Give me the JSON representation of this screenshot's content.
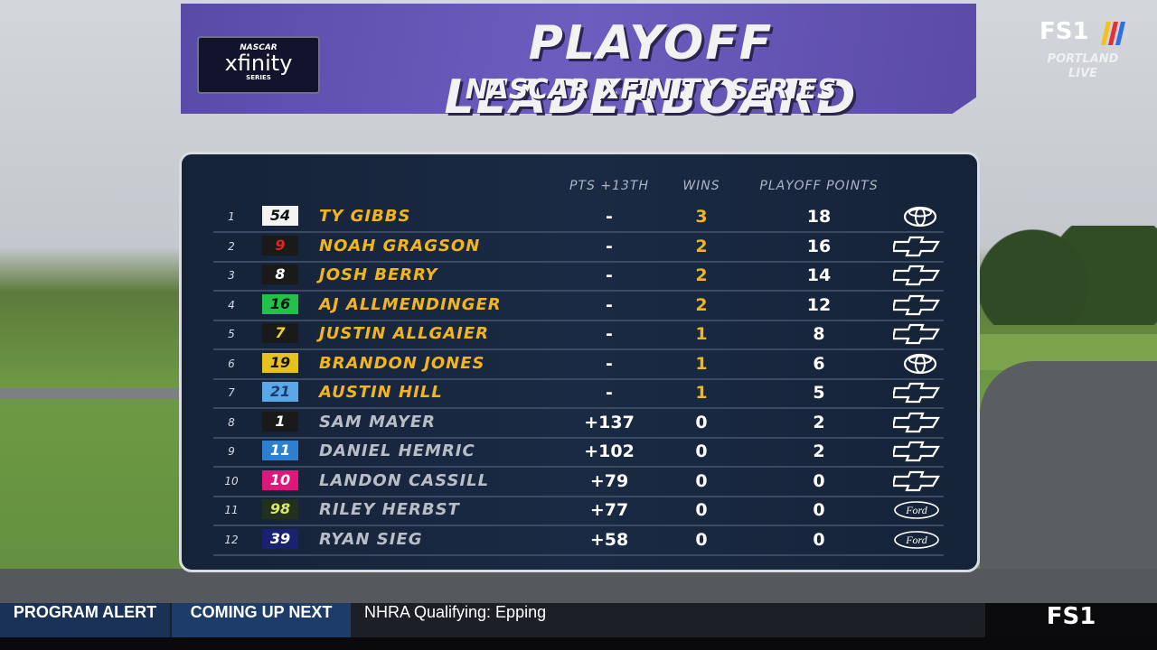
{
  "header": {
    "title": "PLAYOFF LEADERBOARD",
    "subtitle": "NASCAR XFINITY SERIES",
    "logo": {
      "brand": "NASCAR",
      "name": "xfinity",
      "series": "SERIES"
    }
  },
  "network": {
    "name": "FS1",
    "location": "PORTLAND",
    "status": "LIVE"
  },
  "table": {
    "columns": [
      "PTS +13TH",
      "WINS",
      "PLAYOFF POINTS"
    ],
    "rows": [
      {
        "pos": "1",
        "car": "54",
        "car_bg": "#f4f4f4",
        "car_fg": "#111111",
        "driver": "TY GIBBS",
        "pts": "-",
        "wins": "3",
        "playoff_points": "18",
        "color": "#f2b51c",
        "make": "Toyota"
      },
      {
        "pos": "2",
        "car": "9",
        "car_bg": "#1a1a1a",
        "car_fg": "#e0261b",
        "driver": "NOAH GRAGSON",
        "pts": "-",
        "wins": "2",
        "playoff_points": "16",
        "color": "#f2b51c",
        "make": "Chevrolet"
      },
      {
        "pos": "3",
        "car": "8",
        "car_bg": "#1a1a1a",
        "car_fg": "#ffffff",
        "driver": "JOSH BERRY",
        "pts": "-",
        "wins": "2",
        "playoff_points": "14",
        "color": "#f2b51c",
        "make": "Chevrolet"
      },
      {
        "pos": "4",
        "car": "16",
        "car_bg": "#22c14a",
        "car_fg": "#111111",
        "driver": "AJ ALLMENDINGER",
        "pts": "-",
        "wins": "2",
        "playoff_points": "12",
        "color": "#f2b51c",
        "make": "Chevrolet"
      },
      {
        "pos": "5",
        "car": "7",
        "car_bg": "#1a1a1a",
        "car_fg": "#f5d51e",
        "driver": "JUSTIN ALLGAIER",
        "pts": "-",
        "wins": "1",
        "playoff_points": "8",
        "color": "#f2b51c",
        "make": "Chevrolet"
      },
      {
        "pos": "6",
        "car": "19",
        "car_bg": "#e8c21c",
        "car_fg": "#111111",
        "driver": "BRANDON JONES",
        "pts": "-",
        "wins": "1",
        "playoff_points": "6",
        "color": "#f2b51c",
        "make": "Toyota"
      },
      {
        "pos": "7",
        "car": "21",
        "car_bg": "#5aa9e6",
        "car_fg": "#1b3c73",
        "driver": "AUSTIN HILL",
        "pts": "-",
        "wins": "1",
        "playoff_points": "5",
        "color": "#f2b51c",
        "make": "Chevrolet"
      },
      {
        "pos": "8",
        "car": "1",
        "car_bg": "#1a1a1a",
        "car_fg": "#ffffff",
        "driver": "SAM MAYER",
        "pts": "+137",
        "wins": "0",
        "playoff_points": "2",
        "color": "#b9bec6",
        "make": "Chevrolet"
      },
      {
        "pos": "9",
        "car": "11",
        "car_bg": "#2f7fd1",
        "car_fg": "#ffffff",
        "driver": "DANIEL HEMRIC",
        "pts": "+102",
        "wins": "0",
        "playoff_points": "2",
        "color": "#b9bec6",
        "make": "Chevrolet"
      },
      {
        "pos": "10",
        "car": "10",
        "car_bg": "#e0177a",
        "car_fg": "#ffffff",
        "driver": "LANDON CASSILL",
        "pts": "+79",
        "wins": "0",
        "playoff_points": "0",
        "color": "#b9bec6",
        "make": "Chevrolet"
      },
      {
        "pos": "11",
        "car": "98",
        "car_bg": "#23301e",
        "car_fg": "#d8e86a",
        "driver": "RILEY HERBST",
        "pts": "+77",
        "wins": "0",
        "playoff_points": "0",
        "color": "#b9bec6",
        "make": "Ford"
      },
      {
        "pos": "12",
        "car": "39",
        "car_bg": "#1a2170",
        "car_fg": "#ffffff",
        "driver": "RYAN SIEG",
        "pts": "+58",
        "wins": "0",
        "playoff_points": "0",
        "color": "#b9bec6",
        "make": "Ford"
      }
    ]
  },
  "ticker": {
    "alert": "PROGRAM ALERT",
    "label": "COMING UP NEXT",
    "text": "NHRA Qualifying: Epping",
    "network": "FS1"
  }
}
